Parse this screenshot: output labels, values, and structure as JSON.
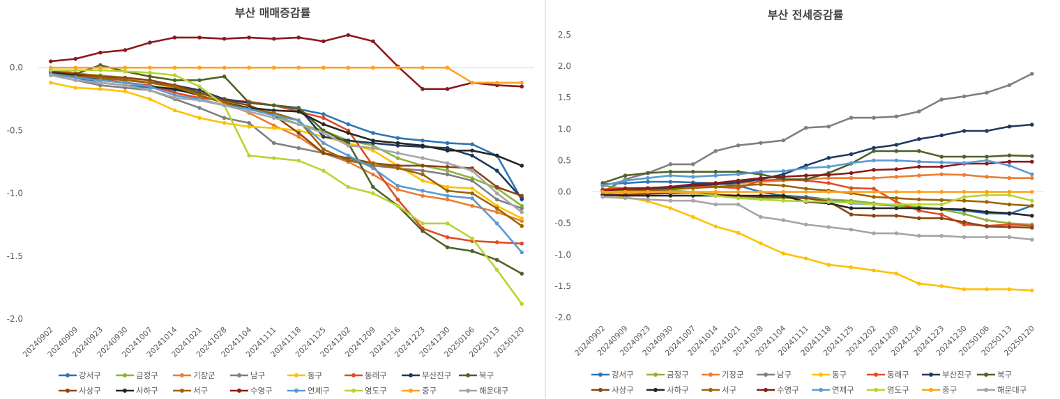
{
  "chart_data": [
    {
      "type": "line",
      "title": "부산 매매증감률",
      "xlabel": "",
      "ylabel": "",
      "ylim": [
        -2.0,
        0.4
      ],
      "yticks": [
        -2.0,
        -1.5,
        -1.0,
        -0.5,
        0.0
      ],
      "ytick_labels": [
        "-2.0",
        "-1.5",
        "-1.0",
        "-0.5",
        "0.0"
      ],
      "legend_position": "bottom",
      "categories": [
        "20240902",
        "20240909",
        "20240923",
        "20240930",
        "20241007",
        "20241014",
        "20241021",
        "20241028",
        "20241104",
        "20241111",
        "20241118",
        "20241125",
        "20241202",
        "20241209",
        "20241216",
        "20241223",
        "20241230",
        "20250106",
        "20250113",
        "20250120"
      ],
      "series": [
        {
          "name": "강서구",
          "color": "#2e75b6",
          "values": [
            -0.05,
            -0.08,
            -0.12,
            -0.14,
            -0.16,
            -0.18,
            -0.2,
            -0.25,
            -0.28,
            -0.3,
            -0.33,
            -0.37,
            -0.45,
            -0.52,
            -0.56,
            -0.58,
            -0.6,
            -0.61,
            -0.7,
            -1.05
          ]
        },
        {
          "name": "금정구",
          "color": "#8db33a",
          "values": [
            -0.03,
            -0.05,
            -0.06,
            -0.08,
            -0.1,
            -0.14,
            -0.2,
            -0.26,
            -0.33,
            -0.38,
            -0.45,
            -0.5,
            -0.58,
            -0.62,
            -0.72,
            -0.78,
            -0.82,
            -0.88,
            -0.96,
            -1.1
          ]
        },
        {
          "name": "기장군",
          "color": "#ed7d31",
          "values": [
            -0.02,
            -0.04,
            -0.07,
            -0.09,
            -0.12,
            -0.16,
            -0.22,
            -0.28,
            -0.36,
            -0.46,
            -0.55,
            -0.68,
            -0.75,
            -0.85,
            -0.97,
            -1.02,
            -1.05,
            -1.1,
            -1.15,
            -1.22
          ]
        },
        {
          "name": "남구",
          "color": "#7f7f7f",
          "values": [
            -0.06,
            -0.1,
            -0.14,
            -0.16,
            -0.18,
            -0.25,
            -0.32,
            -0.4,
            -0.44,
            -0.6,
            -0.64,
            -0.68,
            -0.74,
            -0.78,
            -0.8,
            -0.82,
            -0.85,
            -0.9,
            -1.05,
            -1.12
          ]
        },
        {
          "name": "동구",
          "color": "#ffc000",
          "values": [
            -0.12,
            -0.16,
            -0.17,
            -0.19,
            -0.25,
            -0.34,
            -0.4,
            -0.44,
            -0.47,
            -0.48,
            -0.5,
            -0.55,
            -0.6,
            -0.66,
            -0.78,
            -0.9,
            -0.95,
            -0.96,
            -1.1,
            -1.2
          ]
        },
        {
          "name": "동래구",
          "color": "#e14b24",
          "values": [
            -0.04,
            -0.06,
            -0.09,
            -0.12,
            -0.14,
            -0.2,
            -0.24,
            -0.26,
            -0.27,
            -0.3,
            -0.35,
            -0.4,
            -0.5,
            -0.78,
            -1.05,
            -1.28,
            -1.35,
            -1.38,
            -1.39,
            -1.4
          ]
        },
        {
          "name": "부산진구",
          "color": "#1f3a5f",
          "values": [
            -0.04,
            -0.06,
            -0.08,
            -0.1,
            -0.12,
            -0.14,
            -0.18,
            -0.25,
            -0.28,
            -0.3,
            -0.32,
            -0.55,
            -0.58,
            -0.6,
            -0.62,
            -0.63,
            -0.64,
            -0.7,
            -0.82,
            -1.04
          ]
        },
        {
          "name": "북구",
          "color": "#4f6228",
          "values": [
            -0.04,
            -0.05,
            0.02,
            -0.03,
            -0.07,
            -0.1,
            -0.1,
            -0.07,
            -0.28,
            -0.3,
            -0.32,
            -0.5,
            -0.6,
            -0.95,
            -1.1,
            -1.3,
            -1.43,
            -1.46,
            -1.53,
            -1.64
          ]
        },
        {
          "name": "사상구",
          "color": "#8b4513",
          "values": [
            -0.03,
            -0.05,
            -0.07,
            -0.08,
            -0.1,
            -0.14,
            -0.2,
            -0.26,
            -0.3,
            -0.38,
            -0.52,
            -0.68,
            -0.72,
            -0.76,
            -0.78,
            -0.78,
            -0.79,
            -0.8,
            -0.95,
            -1.02
          ]
        },
        {
          "name": "사하구",
          "color": "#262626",
          "values": [
            -0.04,
            -0.06,
            -0.1,
            -0.12,
            -0.15,
            -0.17,
            -0.22,
            -0.28,
            -0.32,
            -0.34,
            -0.35,
            -0.45,
            -0.52,
            -0.58,
            -0.6,
            -0.62,
            -0.66,
            -0.66,
            -0.7,
            -0.78
          ]
        },
        {
          "name": "서구",
          "color": "#9c6500",
          "values": [
            -0.05,
            -0.07,
            -0.08,
            -0.1,
            -0.12,
            -0.15,
            -0.22,
            -0.28,
            -0.33,
            -0.36,
            -0.42,
            -0.65,
            -0.74,
            -0.76,
            -0.8,
            -0.85,
            -0.98,
            -1.0,
            -1.12,
            -1.26
          ]
        },
        {
          "name": "수영구",
          "color": "#8b1a1a",
          "values": [
            0.05,
            0.07,
            0.12,
            0.14,
            0.2,
            0.24,
            0.24,
            0.23,
            0.24,
            0.23,
            0.24,
            0.21,
            0.26,
            0.21,
            0.01,
            -0.17,
            -0.17,
            -0.12,
            -0.14,
            -0.15
          ]
        },
        {
          "name": "연제구",
          "color": "#5b9bd5",
          "values": [
            -0.05,
            -0.08,
            -0.1,
            -0.12,
            -0.15,
            -0.22,
            -0.25,
            -0.3,
            -0.33,
            -0.38,
            -0.42,
            -0.6,
            -0.7,
            -0.8,
            -0.94,
            -0.98,
            -1.02,
            -1.04,
            -1.24,
            -1.47
          ]
        },
        {
          "name": "영도구",
          "color": "#b8d432",
          "values": [
            -0.02,
            -0.02,
            -0.02,
            -0.03,
            -0.04,
            -0.06,
            -0.15,
            -0.3,
            -0.7,
            -0.72,
            -0.74,
            -0.82,
            -0.95,
            -1.0,
            -1.1,
            -1.24,
            -1.24,
            -1.36,
            -1.61,
            -1.88
          ]
        },
        {
          "name": "중구",
          "color": "#ffa020",
          "values": [
            0.0,
            0.0,
            0.0,
            0.0,
            0.0,
            0.0,
            0.0,
            0.0,
            0.0,
            0.0,
            0.0,
            0.0,
            0.0,
            0.0,
            0.0,
            0.0,
            0.0,
            -0.12,
            -0.12,
            -0.12
          ]
        },
        {
          "name": "해운대구",
          "color": "#a5a5a5",
          "values": [
            -0.06,
            -0.1,
            -0.12,
            -0.14,
            -0.18,
            -0.24,
            -0.26,
            -0.3,
            -0.35,
            -0.4,
            -0.45,
            -0.52,
            -0.62,
            -0.64,
            -0.68,
            -0.72,
            -0.76,
            -0.82,
            -1.0,
            -1.15
          ]
        }
      ]
    },
    {
      "type": "line",
      "title": "부산 전세증감률",
      "xlabel": "",
      "ylabel": "",
      "ylim": [
        -2.0,
        2.5
      ],
      "yticks": [
        -2.0,
        -1.5,
        -1.0,
        -0.5,
        0.0,
        0.5,
        1.0,
        1.5,
        2.0,
        2.5
      ],
      "ytick_labels": [
        "-2.0",
        "-1.5",
        "-1.0",
        "-0.5",
        "0.0",
        "0.5",
        "1.0",
        "1.5",
        "2.0",
        "2.5"
      ],
      "legend_position": "bottom",
      "categories": [
        "20240902",
        "20240909",
        "20240923",
        "20240930",
        "20241007",
        "20241014",
        "20241021",
        "20241028",
        "20241104",
        "20241111",
        "20241118",
        "20241125",
        "20241202",
        "20241209",
        "20241216",
        "20241223",
        "20241230",
        "20250106",
        "20250113",
        "20250120"
      ],
      "series": [
        {
          "name": "강서구",
          "color": "#2e75b6",
          "values": [
            0.12,
            0.14,
            0.16,
            0.16,
            0.15,
            0.14,
            0.1,
            0.0,
            -0.06,
            -0.08,
            -0.12,
            -0.18,
            -0.2,
            -0.22,
            -0.25,
            -0.27,
            -0.3,
            -0.34,
            -0.35,
            -0.22
          ]
        },
        {
          "name": "금정구",
          "color": "#8db33a",
          "values": [
            0.1,
            0.05,
            0.05,
            0.02,
            0.0,
            -0.05,
            -0.08,
            -0.1,
            -0.1,
            -0.1,
            -0.12,
            -0.14,
            -0.18,
            -0.22,
            -0.24,
            -0.28,
            -0.35,
            -0.45,
            -0.5,
            -0.52
          ]
        },
        {
          "name": "기장군",
          "color": "#ed7d31",
          "values": [
            -0.02,
            0.0,
            0.02,
            0.04,
            0.08,
            0.12,
            0.14,
            0.16,
            0.18,
            0.2,
            0.22,
            0.22,
            0.22,
            0.24,
            0.26,
            0.28,
            0.27,
            0.24,
            0.22,
            0.22
          ]
        },
        {
          "name": "남구",
          "color": "#7f7f7f",
          "values": [
            0.0,
            0.2,
            0.3,
            0.44,
            0.44,
            0.65,
            0.74,
            0.78,
            0.82,
            1.02,
            1.04,
            1.18,
            1.18,
            1.2,
            1.28,
            1.47,
            1.52,
            1.58,
            1.7,
            1.88
          ]
        },
        {
          "name": "동구",
          "color": "#ffc000",
          "values": [
            -0.02,
            -0.08,
            -0.15,
            -0.26,
            -0.4,
            -0.55,
            -0.65,
            -0.82,
            -0.98,
            -1.06,
            -1.16,
            -1.2,
            -1.25,
            -1.3,
            -1.46,
            -1.5,
            -1.55,
            -1.55,
            -1.55,
            -1.57
          ]
        },
        {
          "name": "동래구",
          "color": "#e14b24",
          "values": [
            0.04,
            0.06,
            0.06,
            0.08,
            0.1,
            0.08,
            0.06,
            0.18,
            0.2,
            0.18,
            0.14,
            0.06,
            0.05,
            -0.16,
            -0.3,
            -0.36,
            -0.52,
            -0.54,
            -0.52,
            -0.54
          ]
        },
        {
          "name": "부산진구",
          "color": "#1f3a5f",
          "values": [
            0.0,
            0.02,
            0.04,
            0.06,
            0.1,
            0.12,
            0.15,
            0.2,
            0.28,
            0.42,
            0.54,
            0.6,
            0.7,
            0.75,
            0.84,
            0.9,
            0.97,
            0.97,
            1.04,
            1.07
          ]
        },
        {
          "name": "북구",
          "color": "#4f6228",
          "values": [
            0.14,
            0.26,
            0.3,
            0.32,
            0.32,
            0.32,
            0.32,
            0.28,
            0.2,
            0.2,
            0.3,
            0.45,
            0.65,
            0.65,
            0.65,
            0.56,
            0.56,
            0.56,
            0.58,
            0.57
          ]
        },
        {
          "name": "사상구",
          "color": "#8b4513",
          "values": [
            -0.05,
            -0.04,
            -0.03,
            -0.02,
            -0.02,
            -0.04,
            -0.06,
            -0.08,
            -0.08,
            -0.1,
            -0.15,
            -0.36,
            -0.38,
            -0.38,
            -0.42,
            -0.42,
            -0.48,
            -0.55,
            -0.56,
            -0.57
          ]
        },
        {
          "name": "사하구",
          "color": "#262626",
          "values": [
            -0.05,
            -0.06,
            -0.06,
            -0.06,
            -0.06,
            -0.06,
            -0.06,
            -0.06,
            -0.06,
            -0.16,
            -0.18,
            -0.26,
            -0.26,
            -0.26,
            -0.26,
            -0.27,
            -0.28,
            -0.32,
            -0.34,
            -0.38
          ]
        },
        {
          "name": "서구",
          "color": "#9c6500",
          "values": [
            0.02,
            0.02,
            0.02,
            0.04,
            0.06,
            0.08,
            0.1,
            0.12,
            0.1,
            0.05,
            0.02,
            -0.02,
            -0.08,
            -0.1,
            -0.12,
            -0.13,
            -0.14,
            -0.16,
            -0.2,
            -0.22
          ]
        },
        {
          "name": "수영구",
          "color": "#8b1a1a",
          "values": [
            0.02,
            0.05,
            0.06,
            0.08,
            0.12,
            0.14,
            0.18,
            0.22,
            0.24,
            0.26,
            0.27,
            0.3,
            0.35,
            0.36,
            0.4,
            0.4,
            0.45,
            0.45,
            0.48,
            0.48
          ]
        },
        {
          "name": "연제구",
          "color": "#5b9bd5",
          "values": [
            0.1,
            0.18,
            0.22,
            0.26,
            0.24,
            0.26,
            0.28,
            0.32,
            0.33,
            0.38,
            0.4,
            0.46,
            0.5,
            0.5,
            0.48,
            0.47,
            0.46,
            0.5,
            0.42,
            0.28
          ]
        },
        {
          "name": "영도구",
          "color": "#b8d432",
          "values": [
            0.0,
            0.0,
            0.0,
            0.0,
            -0.02,
            -0.06,
            -0.1,
            -0.12,
            -0.14,
            -0.15,
            -0.16,
            -0.17,
            -0.2,
            -0.2,
            -0.2,
            -0.2,
            -0.08,
            -0.05,
            -0.05,
            -0.14
          ]
        },
        {
          "name": "중구",
          "color": "#ffa020",
          "values": [
            0.0,
            0.0,
            0.0,
            0.0,
            0.0,
            0.0,
            0.0,
            0.0,
            0.0,
            0.0,
            0.0,
            0.0,
            0.0,
            0.0,
            0.0,
            0.0,
            0.0,
            0.0,
            0.0,
            0.0
          ]
        },
        {
          "name": "해운대구",
          "color": "#a5a5a5",
          "values": [
            -0.08,
            -0.1,
            -0.12,
            -0.14,
            -0.14,
            -0.2,
            -0.2,
            -0.4,
            -0.45,
            -0.52,
            -0.56,
            -0.6,
            -0.66,
            -0.66,
            -0.7,
            -0.7,
            -0.72,
            -0.72,
            -0.72,
            -0.76
          ]
        }
      ]
    }
  ]
}
